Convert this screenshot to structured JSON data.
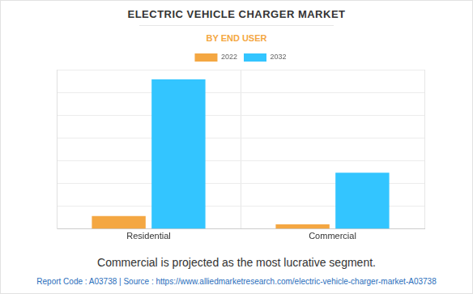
{
  "chart_data": {
    "type": "bar",
    "title": "ELECTRIC VEHICLE CHARGER MARKET",
    "subtitle": "BY END USER",
    "categories": [
      "Residential",
      "Commercial"
    ],
    "series": [
      {
        "name": "2022",
        "color": "#f4a742",
        "values": [
          0.57,
          0.21
        ]
      },
      {
        "name": "2032",
        "color": "#33c5ff",
        "values": [
          6.57,
          2.47
        ]
      }
    ],
    "ylim": [
      0,
      7
    ],
    "yticks": [
      0,
      1,
      2,
      3,
      4,
      5,
      6,
      7
    ],
    "grid": true,
    "legend": "top",
    "tick_labels": "x",
    "annotations": [
      "Commercial is projected as the most lucrative segment.",
      "Report Code : A03738  |  Source : https://www.alliedmarketresearch.com/electric-vehicle-charger-market-A03738"
    ]
  }
}
